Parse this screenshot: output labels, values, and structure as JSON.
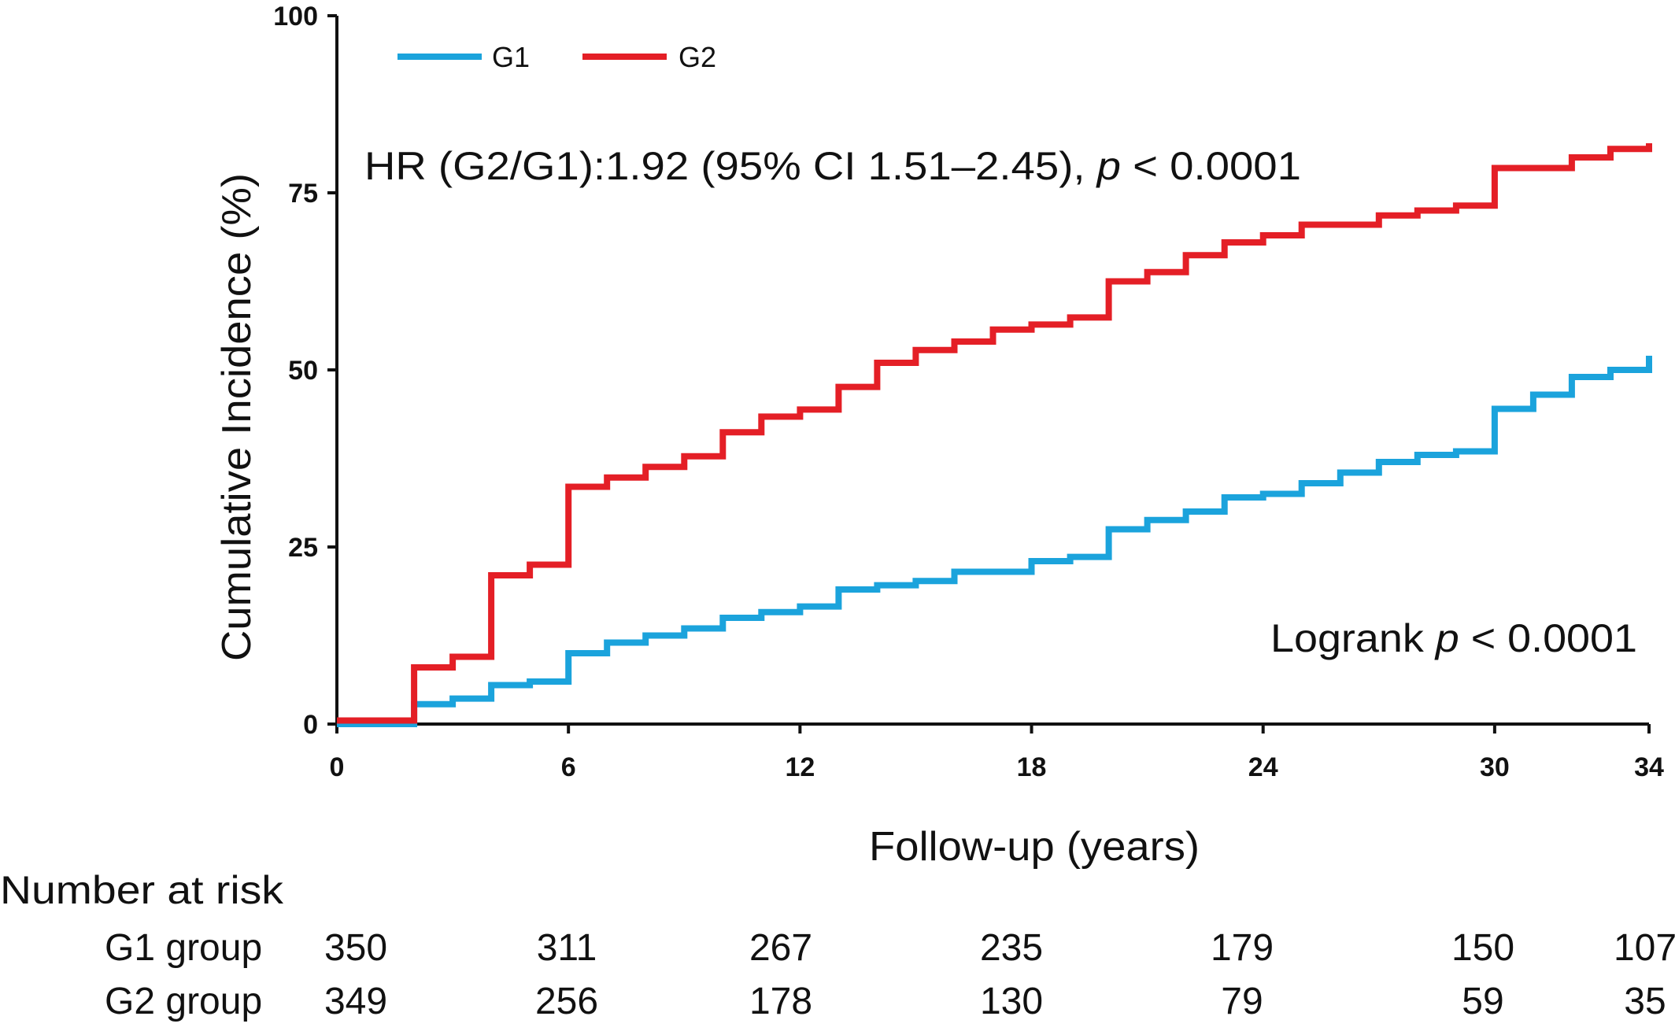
{
  "chart_data": {
    "type": "line",
    "step": true,
    "ylabel": "Cumulative Incidence (%)",
    "xlabel": "Follow-up (years)",
    "xlim": [
      0,
      34
    ],
    "ylim": [
      0,
      100
    ],
    "xticks": [
      0,
      6,
      12,
      18,
      24,
      30,
      34
    ],
    "yticks": [
      0,
      25,
      50,
      75,
      100
    ],
    "legend_placement": "top-left",
    "annotation_hr": {
      "prefix": "HR (G2/G1):1.92 (95% CI 1.51–2.45), ",
      "p_symbol": "p",
      "suffix": " < 0.0001"
    },
    "annotation_logrank": {
      "prefix": "Logrank ",
      "p_symbol": "p",
      "suffix": " < 0.0001"
    },
    "series": [
      {
        "name": "G1",
        "color": "#1ba3dc",
        "points": [
          [
            0,
            0
          ],
          [
            2,
            0
          ],
          [
            2,
            2.8
          ],
          [
            3,
            2.8
          ],
          [
            3,
            3.6
          ],
          [
            4,
            3.6
          ],
          [
            4,
            5.5
          ],
          [
            5,
            5.5
          ],
          [
            5,
            6
          ],
          [
            6,
            6
          ],
          [
            6,
            10
          ],
          [
            7,
            10
          ],
          [
            7,
            11.5
          ],
          [
            8,
            11.5
          ],
          [
            8,
            12.5
          ],
          [
            9,
            12.5
          ],
          [
            9,
            13.5
          ],
          [
            10,
            13.5
          ],
          [
            10,
            15
          ],
          [
            11,
            15
          ],
          [
            11,
            15.8
          ],
          [
            12,
            15.8
          ],
          [
            12,
            16.6
          ],
          [
            13,
            16.6
          ],
          [
            13,
            19
          ],
          [
            14,
            19
          ],
          [
            14,
            19.6
          ],
          [
            15,
            19.6
          ],
          [
            15,
            20.2
          ],
          [
            16,
            20.2
          ],
          [
            16,
            21.5
          ],
          [
            18,
            21.5
          ],
          [
            18,
            23
          ],
          [
            19,
            23
          ],
          [
            19,
            23.6
          ],
          [
            20,
            23.6
          ],
          [
            20,
            27.5
          ],
          [
            21,
            27.5
          ],
          [
            21,
            28.8
          ],
          [
            22,
            28.8
          ],
          [
            22,
            30
          ],
          [
            23,
            30
          ],
          [
            23,
            32
          ],
          [
            24,
            32
          ],
          [
            24,
            32.5
          ],
          [
            25,
            32.5
          ],
          [
            25,
            34
          ],
          [
            26,
            34
          ],
          [
            26,
            35.5
          ],
          [
            27,
            35.5
          ],
          [
            27,
            37
          ],
          [
            28,
            37
          ],
          [
            28,
            38
          ],
          [
            29,
            38
          ],
          [
            29,
            38.5
          ],
          [
            30,
            38.5
          ],
          [
            30,
            44.5
          ],
          [
            31,
            44.5
          ],
          [
            31,
            46.5
          ],
          [
            32,
            46.5
          ],
          [
            32,
            49
          ],
          [
            33,
            49
          ],
          [
            33,
            50
          ],
          [
            34,
            50
          ],
          [
            34,
            52
          ]
        ]
      },
      {
        "name": "G2",
        "color": "#e41f26",
        "points": [
          [
            0,
            0.5
          ],
          [
            2,
            0.5
          ],
          [
            2,
            8
          ],
          [
            3,
            8
          ],
          [
            3,
            9.5
          ],
          [
            4,
            9.5
          ],
          [
            4,
            21
          ],
          [
            5,
            21
          ],
          [
            5,
            22.5
          ],
          [
            6,
            22.5
          ],
          [
            6,
            33.5
          ],
          [
            7,
            33.5
          ],
          [
            7,
            34.8
          ],
          [
            8,
            34.8
          ],
          [
            8,
            36.3
          ],
          [
            9,
            36.3
          ],
          [
            9,
            37.8
          ],
          [
            10,
            37.8
          ],
          [
            10,
            41.2
          ],
          [
            11,
            41.2
          ],
          [
            11,
            43.4
          ],
          [
            12,
            43.4
          ],
          [
            12,
            44.4
          ],
          [
            13,
            44.4
          ],
          [
            13,
            47.6
          ],
          [
            14,
            47.6
          ],
          [
            14,
            51
          ],
          [
            15,
            51
          ],
          [
            15,
            52.8
          ],
          [
            16,
            52.8
          ],
          [
            16,
            54
          ],
          [
            17,
            54
          ],
          [
            17,
            55.7
          ],
          [
            18,
            55.7
          ],
          [
            18,
            56.4
          ],
          [
            19,
            56.4
          ],
          [
            19,
            57.4
          ],
          [
            20,
            57.4
          ],
          [
            20,
            62.5
          ],
          [
            21,
            62.5
          ],
          [
            21,
            63.8
          ],
          [
            22,
            63.8
          ],
          [
            22,
            66.2
          ],
          [
            23,
            66.2
          ],
          [
            23,
            68
          ],
          [
            24,
            68
          ],
          [
            24,
            69
          ],
          [
            25,
            69
          ],
          [
            25,
            70.5
          ],
          [
            27,
            70.5
          ],
          [
            27,
            71.8
          ],
          [
            28,
            71.8
          ],
          [
            28,
            72.5
          ],
          [
            29,
            72.5
          ],
          [
            29,
            73.2
          ],
          [
            30,
            73.2
          ],
          [
            30,
            78.5
          ],
          [
            32,
            78.5
          ],
          [
            32,
            80
          ],
          [
            33,
            80
          ],
          [
            33,
            81.2
          ],
          [
            34,
            81.2
          ],
          [
            34,
            82
          ]
        ]
      }
    ],
    "risk_table": {
      "title": "Number at risk",
      "at_times": [
        0,
        6,
        12,
        18,
        24,
        30,
        34
      ],
      "rows": [
        {
          "label": "G1 group",
          "values": [
            "350",
            "311",
            "267",
            "235",
            "179",
            "150",
            "107"
          ]
        },
        {
          "label": "G2 group",
          "values": [
            "349",
            "256",
            "178",
            "130",
            "79",
            "59",
            "35"
          ]
        }
      ]
    }
  }
}
